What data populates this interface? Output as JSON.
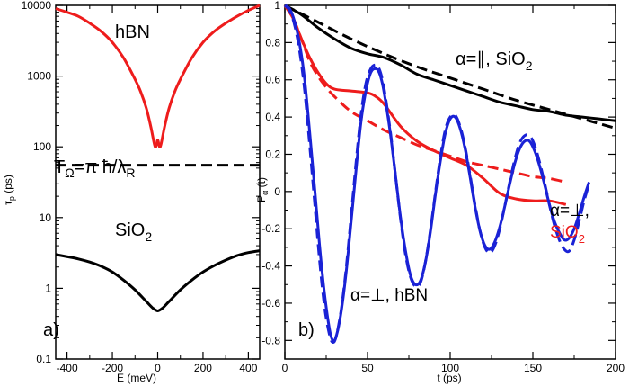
{
  "chart_data": [
    {
      "type": "line",
      "panel_label": "a)",
      "xlabel": "E (meV)",
      "ylabel": "τ_p (ps)",
      "ylabel_main": "τ",
      "ylabel_sub": "p",
      "ylabel_unit": "(ps)",
      "xlim": [
        -450,
        450
      ],
      "ylim": [
        0.1,
        10000
      ],
      "yscale": "log",
      "x_ticks": [
        -400,
        -200,
        0,
        200,
        400
      ],
      "x_tick_labels": [
        "-400",
        "-200",
        "0",
        "200",
        "400"
      ],
      "y_ticks": [
        0.1,
        1,
        10,
        100,
        1000,
        10000
      ],
      "y_tick_labels": [
        "0.1",
        "1",
        "10",
        "100",
        "1000",
        "10000"
      ],
      "series": [
        {
          "name": "hBN",
          "color": "#ee1c1c",
          "style": "solid",
          "x": [
            -450,
            -400,
            -350,
            -300,
            -250,
            -200,
            -150,
            -100,
            -75,
            -50,
            -30,
            -15,
            -8,
            0,
            8,
            15,
            30,
            50,
            75,
            100,
            150,
            200,
            250,
            300,
            350,
            400,
            450
          ],
          "y": [
            9000,
            8000,
            7000,
            5600,
            4300,
            3000,
            1800,
            900,
            600,
            350,
            190,
            110,
            100,
            125,
            100,
            110,
            190,
            350,
            600,
            900,
            1800,
            3000,
            4300,
            5600,
            7000,
            8500,
            10000
          ]
        },
        {
          "name": "T_Ω = π ħ/λ_R",
          "color": "#000000",
          "style": "dashed",
          "x": [
            -450,
            450
          ],
          "y": [
            55,
            55
          ]
        },
        {
          "name": "SiO2",
          "color": "#000000",
          "style": "solid",
          "x": [
            -450,
            -400,
            -350,
            -300,
            -250,
            -200,
            -150,
            -100,
            -50,
            -20,
            0,
            20,
            50,
            100,
            150,
            200,
            250,
            300,
            350,
            400,
            450
          ],
          "y": [
            3.0,
            2.8,
            2.6,
            2.35,
            2.05,
            1.7,
            1.3,
            0.95,
            0.65,
            0.52,
            0.48,
            0.52,
            0.65,
            0.95,
            1.3,
            1.7,
            2.1,
            2.5,
            2.9,
            3.2,
            3.4
          ]
        }
      ],
      "annotations": {
        "hbn": "hBN",
        "t_omega": "T",
        "t_omega_sub": "Ω",
        "t_omega_rest": "=π ħ/λ",
        "t_omega_sub2": "R",
        "sio2": "SiO",
        "sio2_sub": "2"
      }
    },
    {
      "type": "line",
      "panel_label": "b)",
      "xlabel": "t (ps)",
      "ylabel": "P_α (t)",
      "ylabel_main": "P",
      "ylabel_sub": "α",
      "ylabel_unit": "(t)",
      "xlim": [
        0,
        200
      ],
      "ylim": [
        -0.9,
        1.0
      ],
      "x_ticks": [
        0,
        50,
        100,
        150,
        200
      ],
      "x_tick_labels": [
        "0",
        "50",
        "100",
        "150",
        "200"
      ],
      "y_ticks": [
        -0.8,
        -0.6,
        -0.4,
        -0.2,
        0,
        0.2,
        0.4,
        0.6,
        0.8,
        1
      ],
      "y_tick_labels": [
        "-0.8",
        "-0.6",
        "-0.4",
        "-0.2",
        "0",
        "0.2",
        "0.4",
        "0.6",
        "0.8",
        "1"
      ],
      "series": [
        {
          "name": "α=∥, SiO2 (solid)",
          "color": "#000000",
          "style": "solid",
          "x": [
            0,
            10,
            20,
            30,
            40,
            50,
            60,
            70,
            80,
            90,
            100,
            110,
            120,
            130,
            140,
            150,
            160,
            170,
            180,
            190,
            200
          ],
          "y": [
            1.0,
            0.95,
            0.88,
            0.82,
            0.77,
            0.74,
            0.72,
            0.68,
            0.63,
            0.6,
            0.57,
            0.54,
            0.51,
            0.48,
            0.46,
            0.44,
            0.43,
            0.41,
            0.4,
            0.39,
            0.38
          ]
        },
        {
          "name": "α=∥, SiO2 (dashed)",
          "color": "#000000",
          "style": "dashed",
          "x": [
            0,
            20,
            40,
            60,
            80,
            100,
            120,
            140,
            160,
            180,
            200
          ],
          "y": [
            1.0,
            0.91,
            0.82,
            0.74,
            0.67,
            0.61,
            0.55,
            0.49,
            0.44,
            0.39,
            0.34
          ]
        },
        {
          "name": "α=⊥, SiO2 (solid)",
          "color": "#ee1c1c",
          "style": "solid",
          "x": [
            0,
            5,
            10,
            15,
            20,
            25,
            30,
            40,
            50,
            55,
            60,
            70,
            80,
            90,
            100,
            110,
            120,
            130,
            140,
            150,
            160,
            170
          ],
          "y": [
            1.0,
            0.93,
            0.82,
            0.72,
            0.64,
            0.58,
            0.55,
            0.54,
            0.53,
            0.51,
            0.47,
            0.35,
            0.27,
            0.22,
            0.18,
            0.14,
            0.07,
            -0.01,
            -0.04,
            -0.05,
            -0.05,
            -0.07
          ]
        },
        {
          "name": "α=⊥, SiO2 (dashed)",
          "color": "#ee1c1c",
          "style": "dashed",
          "x": [
            0,
            5,
            10,
            15,
            20,
            25,
            30,
            40,
            50,
            60,
            70,
            80,
            90,
            100,
            110,
            120,
            130,
            140,
            150,
            160,
            170
          ],
          "y": [
            1.0,
            0.93,
            0.82,
            0.7,
            0.62,
            0.56,
            0.51,
            0.43,
            0.38,
            0.33,
            0.29,
            0.25,
            0.22,
            0.19,
            0.16,
            0.14,
            0.12,
            0.1,
            0.08,
            0.07,
            0.05
          ]
        },
        {
          "name": "α=⊥, hBN (solid)",
          "color": "#1a22d6",
          "style": "solid",
          "x": [
            0,
            3,
            6,
            9,
            12,
            15,
            18,
            21,
            24,
            27,
            29,
            31,
            34,
            37,
            40,
            43,
            46,
            49,
            52,
            55,
            57,
            59,
            61,
            64,
            67,
            70,
            73,
            76,
            79,
            82,
            85,
            88,
            91,
            94,
            97,
            100,
            103,
            106,
            109,
            112,
            115,
            118,
            121,
            124,
            127,
            130,
            133,
            136,
            139,
            142,
            145,
            148,
            151,
            154,
            157,
            160,
            163,
            166,
            169,
            172,
            175,
            178,
            181,
            184
          ],
          "y": [
            1.0,
            0.98,
            0.91,
            0.79,
            0.6,
            0.32,
            0.02,
            -0.29,
            -0.55,
            -0.74,
            -0.8,
            -0.78,
            -0.65,
            -0.44,
            -0.17,
            0.11,
            0.37,
            0.54,
            0.64,
            0.66,
            0.64,
            0.58,
            0.48,
            0.3,
            0.08,
            -0.14,
            -0.32,
            -0.45,
            -0.5,
            -0.48,
            -0.38,
            -0.22,
            -0.02,
            0.16,
            0.31,
            0.39,
            0.4,
            0.34,
            0.23,
            0.08,
            -0.08,
            -0.21,
            -0.29,
            -0.31,
            -0.27,
            -0.19,
            -0.08,
            0.04,
            0.15,
            0.23,
            0.27,
            0.27,
            0.22,
            0.14,
            0.04,
            -0.07,
            -0.16,
            -0.22,
            -0.26,
            -0.25,
            -0.2,
            -0.12,
            -0.03,
            0.05
          ]
        },
        {
          "name": "α=⊥, hBN (dashed)",
          "color": "#1a22d6",
          "style": "dashed",
          "x": [
            0,
            3,
            6,
            9,
            12,
            15,
            18,
            21,
            24,
            27,
            29,
            31,
            34,
            37,
            40,
            43,
            46,
            49,
            52,
            55,
            57,
            59,
            61,
            64,
            67,
            70,
            73,
            76,
            79,
            82,
            85,
            88,
            91,
            94,
            97,
            100,
            103,
            106,
            109,
            112,
            115,
            118,
            121,
            124,
            127,
            130,
            133,
            136,
            139,
            142,
            145,
            148,
            151,
            154,
            157,
            160,
            163,
            166,
            169,
            172,
            175,
            178,
            181,
            184
          ],
          "y": [
            1.0,
            0.97,
            0.89,
            0.75,
            0.54,
            0.25,
            -0.06,
            -0.37,
            -0.62,
            -0.77,
            -0.81,
            -0.78,
            -0.64,
            -0.42,
            -0.14,
            0.15,
            0.41,
            0.58,
            0.66,
            0.68,
            0.66,
            0.6,
            0.5,
            0.31,
            0.08,
            -0.15,
            -0.34,
            -0.46,
            -0.51,
            -0.49,
            -0.38,
            -0.21,
            -0.01,
            0.18,
            0.33,
            0.4,
            0.41,
            0.35,
            0.24,
            0.09,
            -0.07,
            -0.21,
            -0.3,
            -0.33,
            -0.29,
            -0.2,
            -0.08,
            0.05,
            0.17,
            0.26,
            0.3,
            0.3,
            0.25,
            0.16,
            0.05,
            -0.07,
            -0.18,
            -0.26,
            -0.31,
            -0.32,
            -0.26,
            -0.16,
            -0.05,
            0.04
          ]
        }
      ],
      "annotations": {
        "par_sio2_a": "α=∥, SiO",
        "par_sio2_sub": "2",
        "perp_sio2_line1": "α=⊥,",
        "perp_sio2_line2": "SiO",
        "perp_sio2_sub": "2",
        "perp_hbn": "α=⊥, hBN"
      }
    }
  ]
}
